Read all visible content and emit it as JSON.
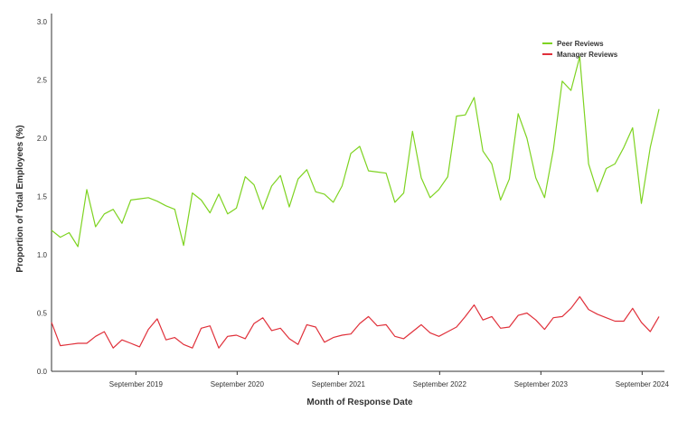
{
  "chart_data": {
    "type": "line",
    "title": "",
    "xlabel": "Month of Response Date",
    "ylabel": "Proportion of Total Employees (%)",
    "ylim": [
      0,
      3.0
    ],
    "yticks": [
      "0.0",
      "0.5",
      "1.0",
      "1.5",
      "2.0",
      "2.5",
      "3.0"
    ],
    "xtick_labels": [
      "September 2019",
      "September 2020",
      "September 2021",
      "September 2022",
      "September 2023",
      "September 2024"
    ],
    "x_start": "2018-11",
    "x_end": "2024-11",
    "legend_position": "top-right",
    "grid": false,
    "series": [
      {
        "name": "Peer Reviews",
        "color": "#7ed321",
        "values": [
          1.21,
          1.15,
          1.19,
          1.07,
          1.56,
          1.24,
          1.35,
          1.39,
          1.27,
          1.47,
          1.48,
          1.49,
          1.46,
          1.42,
          1.39,
          1.08,
          1.53,
          1.47,
          1.36,
          1.52,
          1.35,
          1.4,
          1.67,
          1.6,
          1.39,
          1.59,
          1.68,
          1.41,
          1.65,
          1.73,
          1.54,
          1.52,
          1.45,
          1.59,
          1.87,
          1.93,
          1.72,
          1.71,
          1.7,
          1.45,
          1.53,
          2.06,
          1.66,
          1.49,
          1.56,
          1.67,
          2.19,
          2.2,
          2.35,
          1.89,
          1.78,
          1.47,
          1.65,
          2.21,
          2.0,
          1.66,
          1.49,
          1.9,
          2.49,
          2.41,
          2.7,
          1.78,
          1.54,
          1.74,
          1.78,
          1.92,
          2.09,
          1.44,
          1.92,
          2.25
        ]
      },
      {
        "name": "Manager Reviews",
        "color": "#e0303a",
        "values": [
          0.42,
          0.22,
          0.23,
          0.24,
          0.24,
          0.3,
          0.34,
          0.2,
          0.27,
          0.24,
          0.21,
          0.36,
          0.45,
          0.27,
          0.29,
          0.23,
          0.2,
          0.37,
          0.39,
          0.2,
          0.3,
          0.31,
          0.28,
          0.41,
          0.46,
          0.35,
          0.37,
          0.28,
          0.23,
          0.4,
          0.38,
          0.25,
          0.29,
          0.31,
          0.32,
          0.41,
          0.47,
          0.39,
          0.4,
          0.3,
          0.28,
          0.34,
          0.4,
          0.33,
          0.3,
          0.34,
          0.38,
          0.47,
          0.57,
          0.44,
          0.47,
          0.37,
          0.38,
          0.48,
          0.5,
          0.44,
          0.36,
          0.46,
          0.47,
          0.54,
          0.64,
          0.53,
          0.49,
          0.46,
          0.43,
          0.43,
          0.54,
          0.42,
          0.34,
          0.47
        ]
      }
    ]
  }
}
